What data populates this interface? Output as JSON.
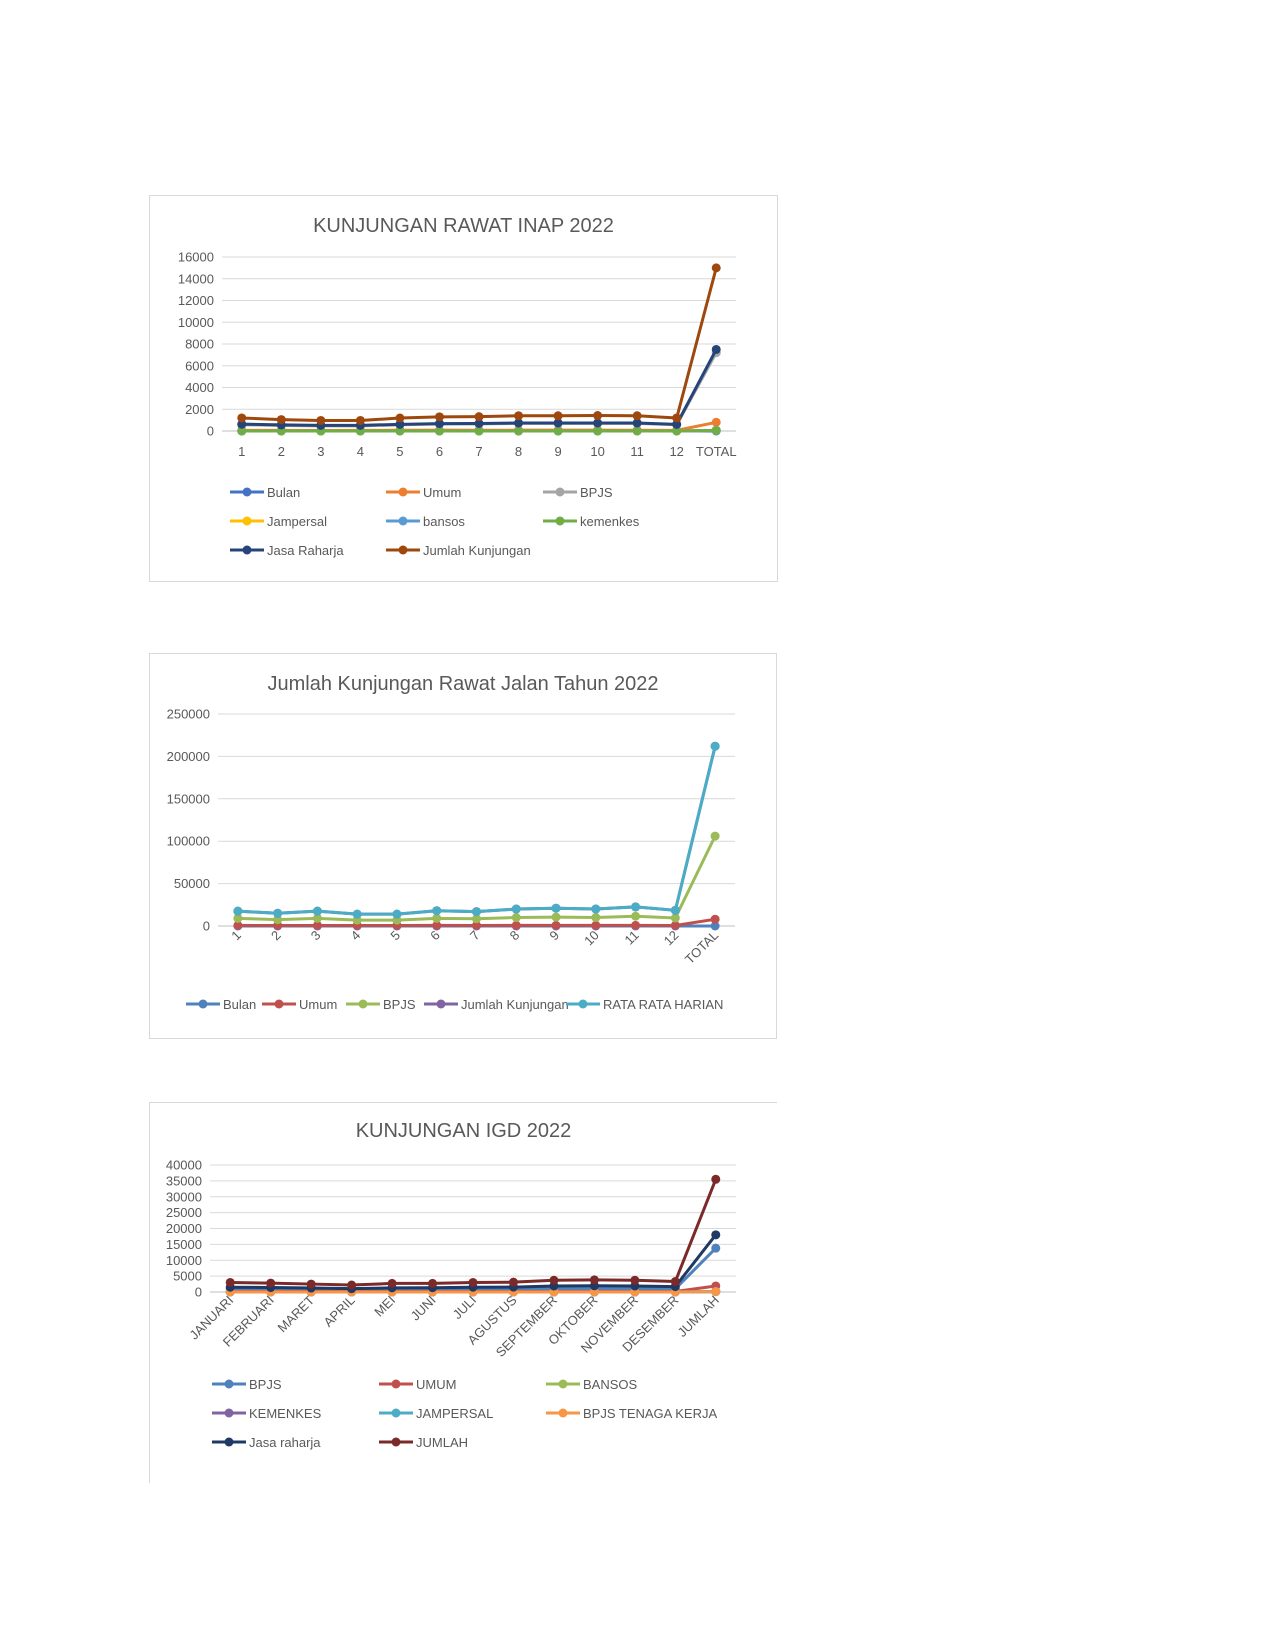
{
  "page": {
    "background": "#ffffff"
  },
  "chart_data": [
    {
      "type": "line",
      "title": "KUNJUNGAN RAWAT INAP 2022",
      "categories": [
        "1",
        "2",
        "3",
        "4",
        "5",
        "6",
        "7",
        "8",
        "9",
        "10",
        "11",
        "12",
        "TOTAL"
      ],
      "ylim": [
        0,
        16000
      ],
      "yticks": [
        0,
        2000,
        4000,
        6000,
        8000,
        10000,
        12000,
        14000,
        16000
      ],
      "grid": true,
      "legend": "bottom",
      "series": [
        {
          "name": "Bulan",
          "color": "#4472c4",
          "values": [
            1,
            2,
            3,
            4,
            5,
            6,
            7,
            8,
            9,
            10,
            11,
            12,
            0
          ]
        },
        {
          "name": "Umum",
          "color": "#ed7d31",
          "values": [
            60,
            55,
            50,
            55,
            70,
            75,
            70,
            75,
            80,
            85,
            70,
            60,
            800
          ]
        },
        {
          "name": "BPJS",
          "color": "#a5a5a5",
          "values": [
            580,
            510,
            470,
            470,
            570,
            640,
            650,
            700,
            700,
            700,
            700,
            570,
            7200
          ]
        },
        {
          "name": "Jampersal",
          "color": "#ffc000",
          "values": [
            5,
            5,
            5,
            5,
            5,
            5,
            5,
            5,
            5,
            5,
            5,
            5,
            60
          ]
        },
        {
          "name": "bansos",
          "color": "#5b9bd5",
          "values": [
            5,
            5,
            5,
            5,
            5,
            5,
            5,
            5,
            5,
            5,
            5,
            5,
            60
          ]
        },
        {
          "name": "kemenkes",
          "color": "#70ad47",
          "values": [
            5,
            5,
            5,
            5,
            5,
            5,
            5,
            5,
            5,
            5,
            5,
            5,
            60
          ]
        },
        {
          "name": "Jasa Raharja",
          "color": "#264478",
          "values": [
            630,
            560,
            520,
            520,
            610,
            680,
            690,
            740,
            740,
            740,
            740,
            610,
            7500
          ]
        },
        {
          "name": "Jumlah Kunjungan",
          "color": "#9e480e",
          "values": [
            1200,
            1050,
            970,
            970,
            1190,
            1300,
            1320,
            1400,
            1400,
            1420,
            1400,
            1200,
            15000
          ]
        }
      ]
    },
    {
      "type": "line",
      "title": "Jumlah Kunjungan Rawat Jalan Tahun 2022",
      "categories": [
        "1",
        "2",
        "3",
        "4",
        "5",
        "6",
        "7",
        "8",
        "9",
        "10",
        "11",
        "12",
        "TOTAL"
      ],
      "ylim": [
        0,
        250000
      ],
      "yticks": [
        0,
        50000,
        100000,
        150000,
        200000,
        250000
      ],
      "grid": true,
      "legend": "bottom",
      "series": [
        {
          "name": "Bulan",
          "color": "#4f81bd",
          "values": [
            1,
            2,
            3,
            4,
            5,
            6,
            7,
            8,
            9,
            10,
            11,
            12,
            0
          ]
        },
        {
          "name": "Umum",
          "color": "#c0504d",
          "values": [
            700,
            600,
            650,
            600,
            600,
            700,
            650,
            700,
            700,
            700,
            700,
            650,
            8000
          ]
        },
        {
          "name": "BPJS",
          "color": "#9bbb59",
          "values": [
            9000,
            7500,
            9000,
            7000,
            7000,
            9000,
            8500,
            10000,
            10500,
            10000,
            11500,
            9500,
            106000
          ]
        },
        {
          "name": "Jumlah Kunjungan",
          "color": "#8064a2",
          "values": [
            17500,
            15000,
            17500,
            14000,
            14000,
            18000,
            17000,
            20000,
            21000,
            20000,
            22500,
            18500,
            212000
          ]
        },
        {
          "name": "RATA RATA HARIAN",
          "color": "#4bacc6",
          "values": [
            17500,
            15000,
            17500,
            14000,
            14000,
            18000,
            17000,
            20000,
            21000,
            20000,
            22500,
            18500,
            212000
          ]
        }
      ]
    },
    {
      "type": "line",
      "title": "KUNJUNGAN IGD 2022",
      "categories": [
        "JANUARI",
        "FEBRUARI",
        "MARET",
        "APRIL",
        "MEI",
        "JUNI",
        "JULI",
        "AGUSTUS",
        "SEPTEMBER",
        "OKTOBER",
        "NOVEMBER",
        "DESEMBER",
        "JUMLAH"
      ],
      "ylim": [
        0,
        40000
      ],
      "yticks": [
        0,
        5000,
        10000,
        15000,
        20000,
        25000,
        30000,
        35000,
        40000
      ],
      "grid": true,
      "legend": "bottom",
      "series": [
        {
          "name": "BPJS",
          "color": "#4f81bd",
          "values": [
            1000,
            900,
            800,
            600,
            750,
            800,
            900,
            1000,
            1100,
            1100,
            1100,
            1000,
            13800
          ]
        },
        {
          "name": "UMUM",
          "color": "#c0504d",
          "values": [
            150,
            150,
            150,
            120,
            130,
            140,
            150,
            160,
            170,
            170,
            170,
            160,
            1900
          ]
        },
        {
          "name": "BANSOS",
          "color": "#9bbb59",
          "values": [
            10,
            10,
            10,
            10,
            10,
            10,
            10,
            10,
            10,
            10,
            10,
            10,
            120
          ]
        },
        {
          "name": "KEMENKES",
          "color": "#8064a2",
          "values": [
            10,
            10,
            10,
            10,
            10,
            10,
            10,
            10,
            10,
            10,
            10,
            10,
            120
          ]
        },
        {
          "name": "JAMPERSAL",
          "color": "#4bacc6",
          "values": [
            10,
            10,
            10,
            10,
            10,
            10,
            10,
            10,
            10,
            10,
            10,
            10,
            120
          ]
        },
        {
          "name": "BPJS TENAGA KERJA",
          "color": "#f79646",
          "values": [
            10,
            10,
            10,
            10,
            10,
            10,
            10,
            10,
            10,
            10,
            10,
            10,
            120
          ]
        },
        {
          "name": "Jasa raharja",
          "color": "#1f3864",
          "values": [
            1500,
            1400,
            1250,
            1050,
            1300,
            1350,
            1500,
            1550,
            1900,
            1950,
            1900,
            1700,
            18000
          ]
        },
        {
          "name": "JUMLAH",
          "color": "#7b2a2a",
          "values": [
            3000,
            2800,
            2500,
            2200,
            2700,
            2700,
            3000,
            3100,
            3700,
            3800,
            3700,
            3300,
            35500
          ]
        }
      ]
    }
  ]
}
